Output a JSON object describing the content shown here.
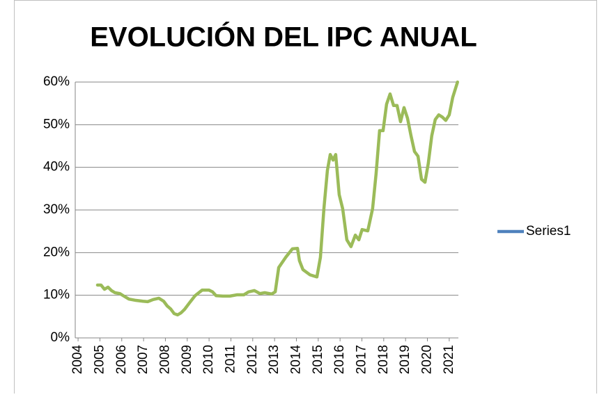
{
  "chart_data": {
    "type": "line",
    "title": "EVOLUCIÓN DEL IPC ANUAL",
    "x": [
      2004.89,
      2005.05,
      2005.21,
      2005.37,
      2005.53,
      2005.69,
      2005.91,
      2006.1,
      2006.33,
      2006.65,
      2006.97,
      2007.19,
      2007.44,
      2007.7,
      2007.92,
      2008.08,
      2008.24,
      2008.4,
      2008.56,
      2008.72,
      2008.88,
      2009.1,
      2009.36,
      2009.68,
      2010.0,
      2010.16,
      2010.32,
      2010.63,
      2010.95,
      2011.27,
      2011.59,
      2011.81,
      2012.07,
      2012.33,
      2012.55,
      2012.87,
      2013.03,
      2013.19,
      2013.51,
      2013.82,
      2014.05,
      2014.14,
      2014.3,
      2014.62,
      2014.94,
      2015.1,
      2015.26,
      2015.42,
      2015.55,
      2015.68,
      2015.8,
      2015.96,
      2016.12,
      2016.31,
      2016.5,
      2016.7,
      2016.86,
      2017.01,
      2017.27,
      2017.49,
      2017.65,
      2017.81,
      2017.97,
      2018.13,
      2018.29,
      2018.45,
      2018.61,
      2018.77,
      2018.93,
      2019.09,
      2019.25,
      2019.41,
      2019.57,
      2019.73,
      2019.89,
      2020.04,
      2020.2,
      2020.36,
      2020.52,
      2020.68,
      2020.84,
      2021.0,
      2021.16,
      2021.38
    ],
    "series": [
      {
        "name": "Series1",
        "color": "#9bbb59",
        "legend_color": "#4f81bd",
        "values": [
          12.4,
          12.4,
          11.4,
          11.9,
          11.1,
          10.6,
          10.4,
          9.8,
          9.1,
          8.8,
          8.6,
          8.5,
          9.0,
          9.3,
          8.6,
          7.5,
          6.8,
          5.7,
          5.4,
          5.9,
          6.7,
          8.2,
          9.9,
          11.2,
          11.2,
          10.8,
          9.9,
          9.8,
          9.8,
          10.1,
          10.1,
          10.8,
          11.1,
          10.4,
          10.6,
          10.3,
          10.8,
          16.5,
          18.9,
          20.9,
          21.0,
          18.1,
          16.0,
          14.8,
          14.3,
          18.9,
          30.3,
          39.3,
          43.0,
          41.7,
          43.0,
          33.6,
          30.3,
          23.0,
          21.4,
          24.1,
          23.0,
          25.4,
          25.1,
          30.3,
          38.5,
          48.6,
          48.6,
          54.8,
          57.2,
          54.5,
          54.5,
          50.7,
          54.0,
          51.5,
          47.4,
          43.7,
          42.6,
          37.2,
          36.5,
          40.9,
          47.4,
          51.2,
          52.3,
          51.8,
          51.0,
          52.3,
          56.4,
          60.0
        ]
      }
    ],
    "xlim": [
      2003.87,
      2021.42
    ],
    "xticks": [
      2004,
      2005,
      2006,
      2007,
      2008,
      2009,
      2010,
      2011,
      2012,
      2013,
      2014,
      2015,
      2016,
      2017,
      2018,
      2019,
      2020,
      2021
    ],
    "ylim": [
      0,
      60
    ],
    "yticks": [
      {
        "value": 0,
        "label": "0%"
      },
      {
        "value": 10,
        "label": "10%"
      },
      {
        "value": 20,
        "label": "20%"
      },
      {
        "value": 30,
        "label": "30%"
      },
      {
        "value": 40,
        "label": "40%"
      },
      {
        "value": 50,
        "label": "50%"
      },
      {
        "value": 60,
        "label": "60%"
      }
    ],
    "grid": true,
    "legend": "right"
  }
}
